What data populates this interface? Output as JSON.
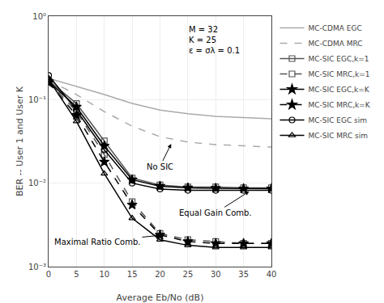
{
  "chart_data": {
    "type": "line",
    "xlabel": "Average Eb/No (dB)",
    "ylabel": "BER -- User 1 and User K",
    "x": [
      0,
      5,
      10,
      15,
      20,
      25,
      30,
      35,
      40
    ],
    "xlim": [
      0,
      40
    ],
    "xticks": [
      0,
      5,
      10,
      15,
      20,
      25,
      30,
      35,
      40
    ],
    "ylim": [
      0.001,
      1
    ],
    "yticks": [
      {
        "value": 0.001,
        "label": "10⁻³"
      },
      {
        "value": 0.01,
        "label": "10⁻²"
      },
      {
        "value": 0.1,
        "label": "10⁻¹"
      },
      {
        "value": 1,
        "label": "10⁰"
      }
    ],
    "log": "y",
    "grid": true,
    "legend": "right",
    "annotations": [
      "M = 32\nK = 25\nε = σλ = 0.1",
      "No SIC",
      "Equal Gain Comb.",
      "Maximal Ratio Comb."
    ],
    "series": [
      {
        "name": "MC-CDMA EGC",
        "color": "#aaaaaa",
        "marker": "none",
        "line_style": "solid",
        "values": [
          0.18,
          0.145,
          0.115,
          0.09,
          0.075,
          0.068,
          0.063,
          0.061,
          0.059
        ]
      },
      {
        "name": "MC-CDMA MRC",
        "color": "#aaaaaa",
        "marker": "none",
        "line_style": "dashed",
        "values": [
          0.17,
          0.115,
          0.072,
          0.048,
          0.036,
          0.031,
          0.029,
          0.028,
          0.027
        ]
      },
      {
        "name": "MC-SIC EGC,k=1",
        "color": "#555555",
        "marker": "square-open",
        "line_style": "solid",
        "values": [
          0.17,
          0.09,
          0.032,
          0.0115,
          0.0095,
          0.009,
          0.009,
          0.0088,
          0.0088
        ]
      },
      {
        "name": "MC-SIC MRC,k=1",
        "color": "#555555",
        "marker": "square-open",
        "line_style": "dashed",
        "values": [
          0.165,
          0.072,
          0.022,
          0.006,
          0.0025,
          0.0021,
          0.002,
          0.0019,
          0.0019
        ]
      },
      {
        "name": "MC-SIC EGC,k=K",
        "color": "#000000",
        "marker": "star",
        "line_style": "solid",
        "values": [
          0.165,
          0.082,
          0.028,
          0.011,
          0.0092,
          0.0088,
          0.0087,
          0.0086,
          0.0086
        ]
      },
      {
        "name": "MC-SIC MRC,k=K",
        "color": "#000000",
        "marker": "star",
        "line_style": "dashed",
        "values": [
          0.16,
          0.065,
          0.018,
          0.0055,
          0.0024,
          0.002,
          0.0019,
          0.0019,
          0.0019
        ]
      },
      {
        "name": "MC-SIC EGC sim",
        "color": "#000000",
        "marker": "circle-open",
        "line_style": "solid",
        "values": [
          0.195,
          0.075,
          0.025,
          0.01,
          0.0085,
          0.0082,
          0.0082,
          0.0082,
          0.0082
        ]
      },
      {
        "name": "MC-SIC MRC sim",
        "color": "#000000",
        "marker": "triangle-up-open",
        "line_style": "solid",
        "values": [
          0.175,
          0.055,
          0.013,
          0.0038,
          0.0021,
          0.0018,
          0.0017,
          0.0017,
          0.0017
        ]
      }
    ]
  }
}
